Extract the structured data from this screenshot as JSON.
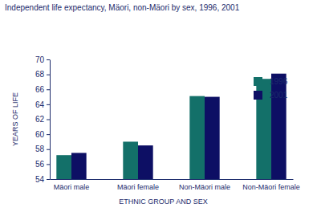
{
  "chart_data": {
    "type": "bar",
    "title": "Independent life expectancy, Mäori, non-Mäori by sex, 1996, 2001",
    "categories": [
      "Mäori male",
      "Mäori female",
      "Non-Mäori male",
      "Non-Mäori female"
    ],
    "series": [
      {
        "name": "1996",
        "color": "#137069",
        "values": [
          57.2,
          59.0,
          65.1,
          67.4
        ]
      },
      {
        "name": "2001",
        "color": "#0d0f64",
        "values": [
          57.5,
          58.5,
          65.0,
          68.1
        ]
      }
    ],
    "x_label": "ETHNIC GROUP AND SEX",
    "y_label": "YEARS OF LIFE",
    "ylim": [
      54,
      70
    ],
    "yticks": [
      54,
      56,
      58,
      60,
      62,
      64,
      66,
      68,
      70
    ],
    "grid": false,
    "legend": "top-right"
  }
}
